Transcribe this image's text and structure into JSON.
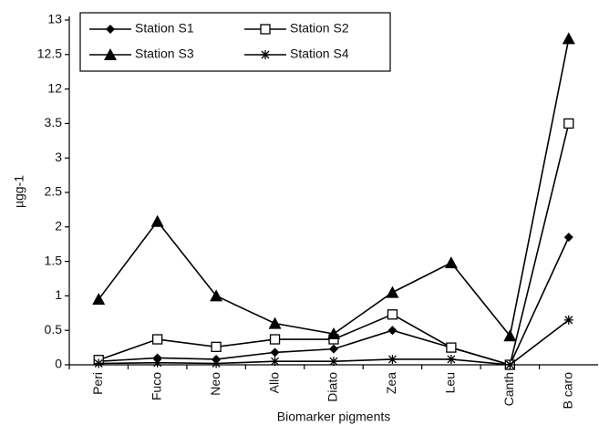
{
  "chart_data": {
    "type": "line",
    "x_label": "Biomarker pigments",
    "y_label": "µgg-1",
    "categories": [
      "Peri",
      "Fuco",
      "Neo",
      "Allo",
      "Diato",
      "Zea",
      "Leu",
      "Canth",
      "B caro"
    ],
    "series": [
      {
        "name": "Station S1",
        "color": "#000000",
        "marker": "diamond",
        "values": [
          0.05,
          0.1,
          0.08,
          0.18,
          0.23,
          0.5,
          0.25,
          0,
          1.85
        ]
      },
      {
        "name": "Station S2",
        "color": "#000000",
        "marker": "square",
        "values": [
          0.07,
          0.37,
          0.26,
          0.37,
          0.37,
          0.73,
          0.25,
          0,
          3.5
        ]
      },
      {
        "name": "Station S3",
        "color": "#000000",
        "marker": "triangle",
        "values": [
          0.95,
          2.08,
          1.0,
          0.6,
          0.45,
          1.05,
          1.48,
          0.42,
          12.73
        ]
      },
      {
        "name": "Station S4",
        "color": "#000000",
        "marker": "asterisk",
        "values": [
          0.02,
          0.03,
          0.02,
          0.05,
          0.05,
          0.08,
          0.08,
          0,
          0.65
        ]
      }
    ],
    "ylim": [
      0,
      13
    ],
    "yticks": [
      0,
      0.5,
      1,
      1.5,
      2,
      2.5,
      3,
      3.5,
      12,
      12.5,
      13
    ],
    "legend": "upper left"
  }
}
